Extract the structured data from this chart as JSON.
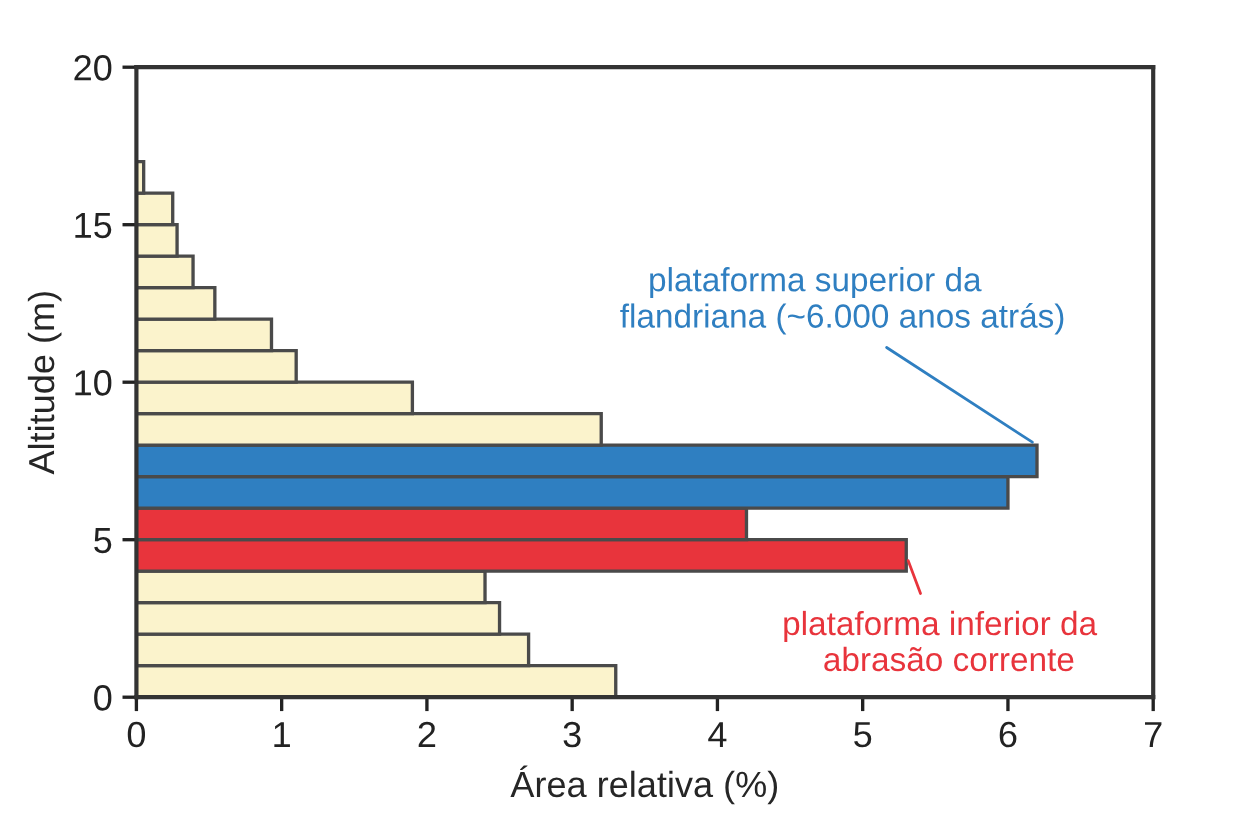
{
  "chart_data": {
    "type": "histogram",
    "orientation": "horizontal",
    "xlabel": "Área relativa (%)",
    "ylabel": "Altitude (m)",
    "bins": [
      0,
      1,
      2,
      3,
      4,
      5,
      6,
      7,
      8,
      9,
      10,
      11,
      12,
      13,
      14,
      15,
      16,
      17
    ],
    "values": [
      3.3,
      2.7,
      2.5,
      2.4,
      5.3,
      4.2,
      6.0,
      6.2,
      3.2,
      1.9,
      1.1,
      0.93,
      0.54,
      0.39,
      0.28,
      0.25,
      0.05
    ],
    "colors": [
      "#fbf3cc",
      "#fbf3cc",
      "#fbf3cc",
      "#fbf3cc",
      "#e8343c",
      "#e8343c",
      "#2f7fc1",
      "#2f7fc1",
      "#fbf3cc",
      "#fbf3cc",
      "#fbf3cc",
      "#fbf3cc",
      "#fbf3cc",
      "#fbf3cc",
      "#fbf3cc",
      "#fbf3cc",
      "#fbf3cc"
    ],
    "xlim": [
      0,
      7
    ],
    "xticks": [
      0,
      1,
      2,
      3,
      4,
      5,
      6,
      7
    ],
    "ylim": [
      0,
      20
    ],
    "yticks": [
      0,
      5,
      10,
      15,
      20
    ],
    "annotations": [
      {
        "text": "plataforma superior da\n      flandriana (~6.000 anos atrás)",
        "x": 6.2,
        "y": 8
      },
      {
        "text": "plataforma inferior da\n  abrasão corrente",
        "x": 5.3,
        "y": 4.5
      }
    ],
    "grid": false
  }
}
